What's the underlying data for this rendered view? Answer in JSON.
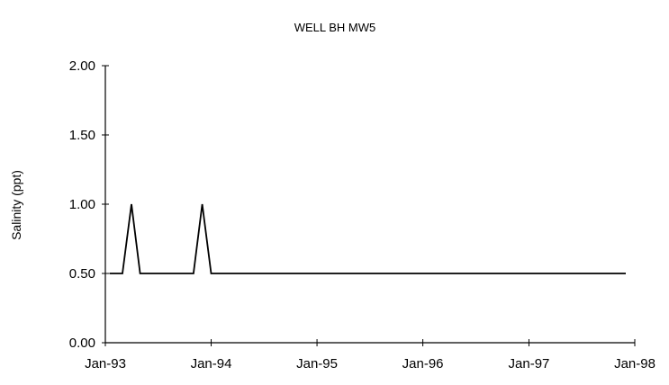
{
  "chart_data": {
    "type": "line",
    "title": "WELL BH MW5",
    "xlabel": "",
    "ylabel": "Salinity (ppt)",
    "x_ticks": [
      "Jan-93",
      "Jan-94",
      "Jan-95",
      "Jan-96",
      "Jan-97",
      "Jan-98"
    ],
    "x_range": [
      "Jan-93",
      "Jan-98"
    ],
    "y_ticks": [
      "0.00",
      "0.50",
      "1.00",
      "1.50",
      "2.00"
    ],
    "ylim": [
      0,
      2
    ],
    "grid": false,
    "legend": "none",
    "series": [
      {
        "points": [
          [
            "1993-01-15",
            0.5
          ],
          [
            "1993-03-01",
            0.5
          ],
          [
            "1993-04-01",
            1.0
          ],
          [
            "1993-05-01",
            0.5
          ],
          [
            "1993-11-01",
            0.5
          ],
          [
            "1993-12-01",
            1.0
          ],
          [
            "1994-01-01",
            0.5
          ],
          [
            "1997-12-01",
            0.5
          ]
        ],
        "color": "#000000"
      }
    ]
  }
}
